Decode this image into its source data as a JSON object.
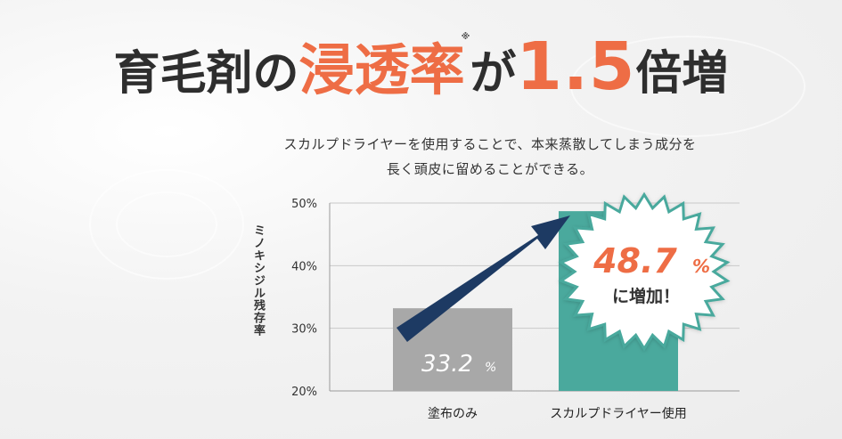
{
  "headline": {
    "prefix": "育毛剤の",
    "highlight": "浸透率",
    "note_mark": "※",
    "particle": "が",
    "multiplier": "1.5",
    "suffix": "倍増"
  },
  "description": {
    "line1": "スカルプドライヤーを使用することで、本来蒸散してしまう成分を",
    "line2": "長く頭皮に留めることができる。"
  },
  "chart_data": {
    "type": "bar",
    "ylabel": "ミノキシジル残存率",
    "ylim": [
      20,
      50
    ],
    "y_ticks": [
      "20%",
      "30%",
      "40%",
      "50%"
    ],
    "y_tick_values": [
      20,
      30,
      40,
      50
    ],
    "grid": true,
    "categories": [
      "塗布のみ",
      "スカルプドライヤー使用"
    ],
    "values": [
      33.2,
      48.7
    ],
    "data_labels": [
      "33.2",
      "48.7"
    ],
    "unit": "%",
    "callout_text": "に増加！",
    "colors": {
      "bar_base": "#a8a8a8",
      "bar_highlight": "#4aa99d",
      "arrow": "#1d3a63",
      "accent": "#ee6d45"
    }
  }
}
